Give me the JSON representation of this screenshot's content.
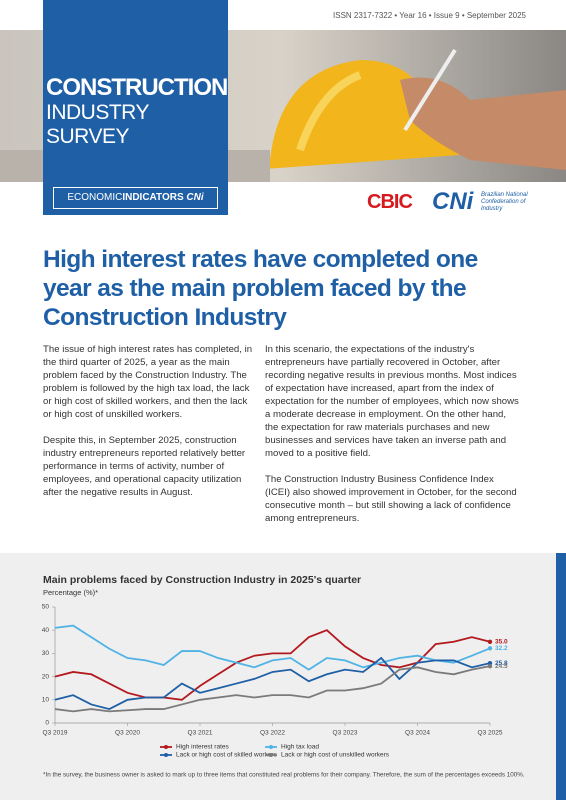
{
  "header": {
    "issn": "ISSN 2317-7322 • Year 16 • Issue 9 • September 2025",
    "title_line1": "CONSTRUCTION",
    "title_line2": "INDUSTRY SURVEY",
    "series_label_light": "ECONOMIC",
    "series_label_bold": "INDICATORS",
    "series_label_brand": "CNi",
    "logo_cbic": "CBIC",
    "logo_cni": "CNi",
    "cni_caption": "Brazilian National Confederation of Industry"
  },
  "headline": "High interest rates have completed one year as the main problem faced by the Construction Industry",
  "body": {
    "left": [
      "The issue of high interest rates has completed, in the third quarter of 2025, a year as the main problem faced by the Construction Industry. The problem is followed by the high tax load, the lack or high cost of skilled workers, and then the lack or high cost of unskilled workers.",
      "Despite this, in September 2025, construction industry entrepreneurs reported relatively better performance in terms of activity, number of employees, and operational capacity utilization after the negative results in August."
    ],
    "right": [
      "In this scenario, the expectations of the industry's entrepreneurs have partially recovered in October, after recording negative results in previous months. Most indices of expectation have increased, apart from the index of expectation for the number of employees, which now shows a moderate decrease in employment. On the other hand, the expectation for raw materials purchases and new businesses and services have taken an inverse path and moved to a positive field.",
      "The Construction Industry Business Confidence Index (ICEI) also showed improvement in October, for the second consecutive month – but still showing a lack of confidence among entrepreneurs."
    ]
  },
  "chart_data": {
    "type": "line",
    "title": "Main problems faced by Construction Industry in 2025's quarter",
    "y_label": "Percentage (%)*",
    "categories": [
      "Q3 2019",
      null,
      null,
      null,
      "Q3 2020",
      null,
      null,
      null,
      "Q3 2021",
      null,
      null,
      null,
      "Q3 2022",
      null,
      null,
      null,
      "Q3 2023",
      null,
      null,
      null,
      "Q3 2024",
      null,
      null,
      null,
      "Q3 2025"
    ],
    "series": [
      {
        "name": "High interest rates",
        "color": "#b3191e",
        "values": [
          20,
          22,
          21,
          17,
          13,
          11,
          11,
          10,
          16,
          21,
          26,
          29,
          30,
          30,
          37,
          40,
          33,
          28,
          25,
          24,
          26,
          34,
          35,
          37,
          35.0
        ],
        "value_labels": [
          null,
          null,
          null,
          null,
          null,
          null,
          null,
          null,
          null,
          null,
          null,
          null,
          null,
          null,
          null,
          null,
          null,
          null,
          null,
          null,
          null,
          null,
          null,
          null,
          "35.0"
        ]
      },
      {
        "name": "High tax load",
        "color": "#4fb3e6",
        "values": [
          41,
          42,
          37,
          32,
          28,
          27,
          25,
          31,
          31,
          28,
          26,
          24,
          27,
          28,
          23,
          28,
          27,
          24,
          26,
          28,
          29,
          27,
          26,
          29,
          32.2
        ],
        "value_labels": [
          null,
          null,
          null,
          null,
          null,
          null,
          null,
          null,
          null,
          null,
          null,
          null,
          null,
          null,
          null,
          null,
          null,
          null,
          null,
          null,
          null,
          null,
          null,
          null,
          "32.2"
        ]
      },
      {
        "name": "Lack or high cost of skilled workers",
        "color": "#1f5fa6",
        "values": [
          10,
          12,
          8,
          6,
          10,
          11,
          11,
          17,
          13,
          15,
          17,
          19,
          22,
          23,
          18,
          21,
          23,
          22,
          28,
          19,
          26,
          27,
          27,
          24,
          25.8
        ],
        "value_labels": [
          null,
          null,
          null,
          null,
          null,
          null,
          null,
          null,
          null,
          null,
          null,
          null,
          null,
          null,
          null,
          null,
          null,
          null,
          null,
          null,
          null,
          null,
          null,
          null,
          "25.8"
        ]
      },
      {
        "name": "Lack or high cost of unskilled workers",
        "color": "#7a7a7a",
        "values": [
          6,
          5,
          6,
          5,
          5.5,
          6,
          6,
          8,
          10,
          11,
          12,
          11,
          12,
          12,
          11,
          14,
          14,
          15,
          17,
          23,
          24,
          22,
          21,
          23,
          24.5
        ],
        "value_labels": [
          null,
          null,
          null,
          null,
          null,
          null,
          null,
          null,
          null,
          null,
          null,
          null,
          null,
          null,
          null,
          null,
          null,
          null,
          null,
          null,
          null,
          null,
          null,
          null,
          "24.5"
        ]
      }
    ],
    "ylim": [
      0,
      50
    ],
    "yticks": [
      0,
      10,
      20,
      30,
      40,
      50
    ],
    "grid": false,
    "footnote": "*In the survey, the business owner is asked to mark up to three items that constituted real problems for their company. Therefore, the sum of the percentages exceeds 100%."
  }
}
